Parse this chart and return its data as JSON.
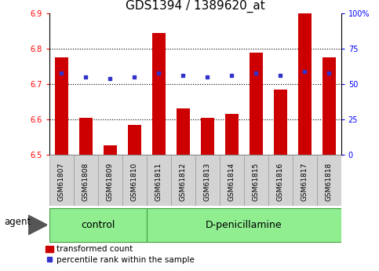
{
  "title": "GDS1394 / 1389620_at",
  "samples": [
    "GSM61807",
    "GSM61808",
    "GSM61809",
    "GSM61810",
    "GSM61811",
    "GSM61812",
    "GSM61813",
    "GSM61814",
    "GSM61815",
    "GSM61816",
    "GSM61817",
    "GSM61818"
  ],
  "red_values": [
    6.775,
    6.605,
    6.525,
    6.585,
    6.845,
    6.63,
    6.605,
    6.615,
    6.79,
    6.685,
    6.9,
    6.775
  ],
  "blue_values_pct": [
    58,
    55,
    54,
    55,
    58,
    56,
    55,
    56,
    58,
    56,
    59,
    58
  ],
  "ylim_left": [
    6.5,
    6.9
  ],
  "ylim_right": [
    0,
    100
  ],
  "yticks_left": [
    6.5,
    6.6,
    6.7,
    6.8,
    6.9
  ],
  "yticks_right": [
    0,
    25,
    50,
    75,
    100
  ],
  "ytick_labels_right": [
    "0",
    "25",
    "50",
    "75",
    "100%"
  ],
  "bar_color": "#cc0000",
  "dot_color": "#3333cc",
  "bar_bottom": 6.5,
  "control_count": 4,
  "control_label": "control",
  "treatment_label": "D-penicillamine",
  "agent_label": "agent",
  "legend_red": "transformed count",
  "legend_blue": "percentile rank within the sample",
  "title_fontsize": 11,
  "tick_fontsize": 7,
  "sample_fontsize": 6.5,
  "group_fontsize": 9,
  "legend_fontsize": 7.5
}
